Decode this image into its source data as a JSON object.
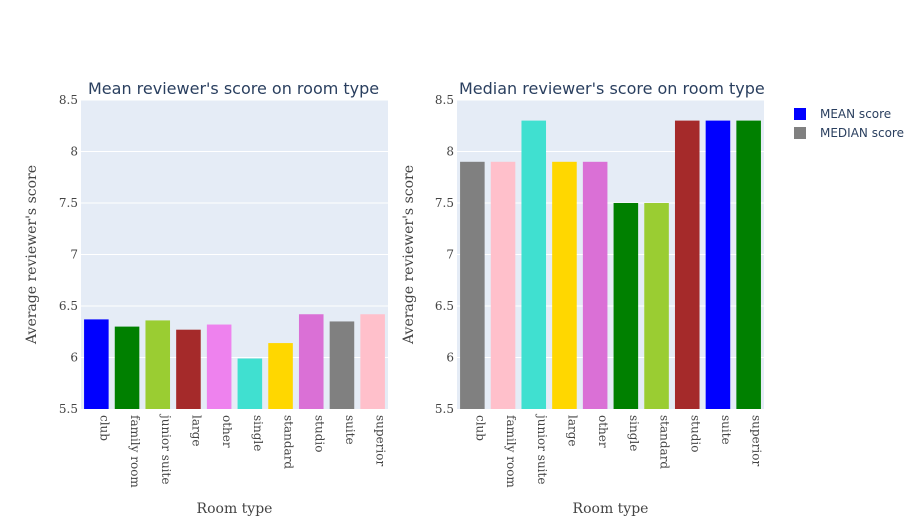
{
  "chart_data": [
    {
      "type": "bar",
      "title": "Mean reviewer's score on room type",
      "xlabel": "Room type",
      "ylabel": "Average reviewer's score",
      "ylim": [
        5.5,
        8.5
      ],
      "yticks": [
        "5.5",
        "6",
        "6.5",
        "7",
        "7.5",
        "8",
        "8.5"
      ],
      "categories": [
        "club",
        "family room",
        "junior suite",
        "large",
        "other",
        "single",
        "standard",
        "studio",
        "suite",
        "superior"
      ],
      "values": [
        6.37,
        6.3,
        6.36,
        6.27,
        6.32,
        5.99,
        6.14,
        6.42,
        6.35,
        6.42
      ],
      "colors": [
        "#0000ff",
        "#008000",
        "#9acd32",
        "#a52a2a",
        "#ee82ee",
        "#40e0d0",
        "#ffd700",
        "#da70d6",
        "#808080",
        "#ffc0cb"
      ],
      "grid": true
    },
    {
      "type": "bar",
      "title": "Median reviewer's score on room type",
      "xlabel": "Room type",
      "ylabel": "Average reviewer's score",
      "ylim": [
        5.5,
        8.5
      ],
      "yticks": [
        "5.5",
        "6",
        "6.5",
        "7",
        "7.5",
        "8",
        "8.5"
      ],
      "categories": [
        "club",
        "family room",
        "junior suite",
        "large",
        "other",
        "single",
        "standard",
        "studio",
        "suite",
        "superior"
      ],
      "values": [
        7.9,
        7.9,
        8.3,
        7.9,
        7.9,
        7.5,
        7.5,
        8.3,
        8.3,
        8.3
      ],
      "colors": [
        "#808080",
        "#ffc0cb",
        "#40e0d0",
        "#ffd700",
        "#da70d6",
        "#008000",
        "#9acd32",
        "#a52a2a",
        "#0000ff",
        "#008000"
      ],
      "grid": true
    }
  ],
  "legend": {
    "placement": "top-right",
    "items": [
      {
        "label": "MEAN score",
        "color": "#0000ff"
      },
      {
        "label": "MEDIAN score",
        "color": "#808080"
      }
    ]
  }
}
